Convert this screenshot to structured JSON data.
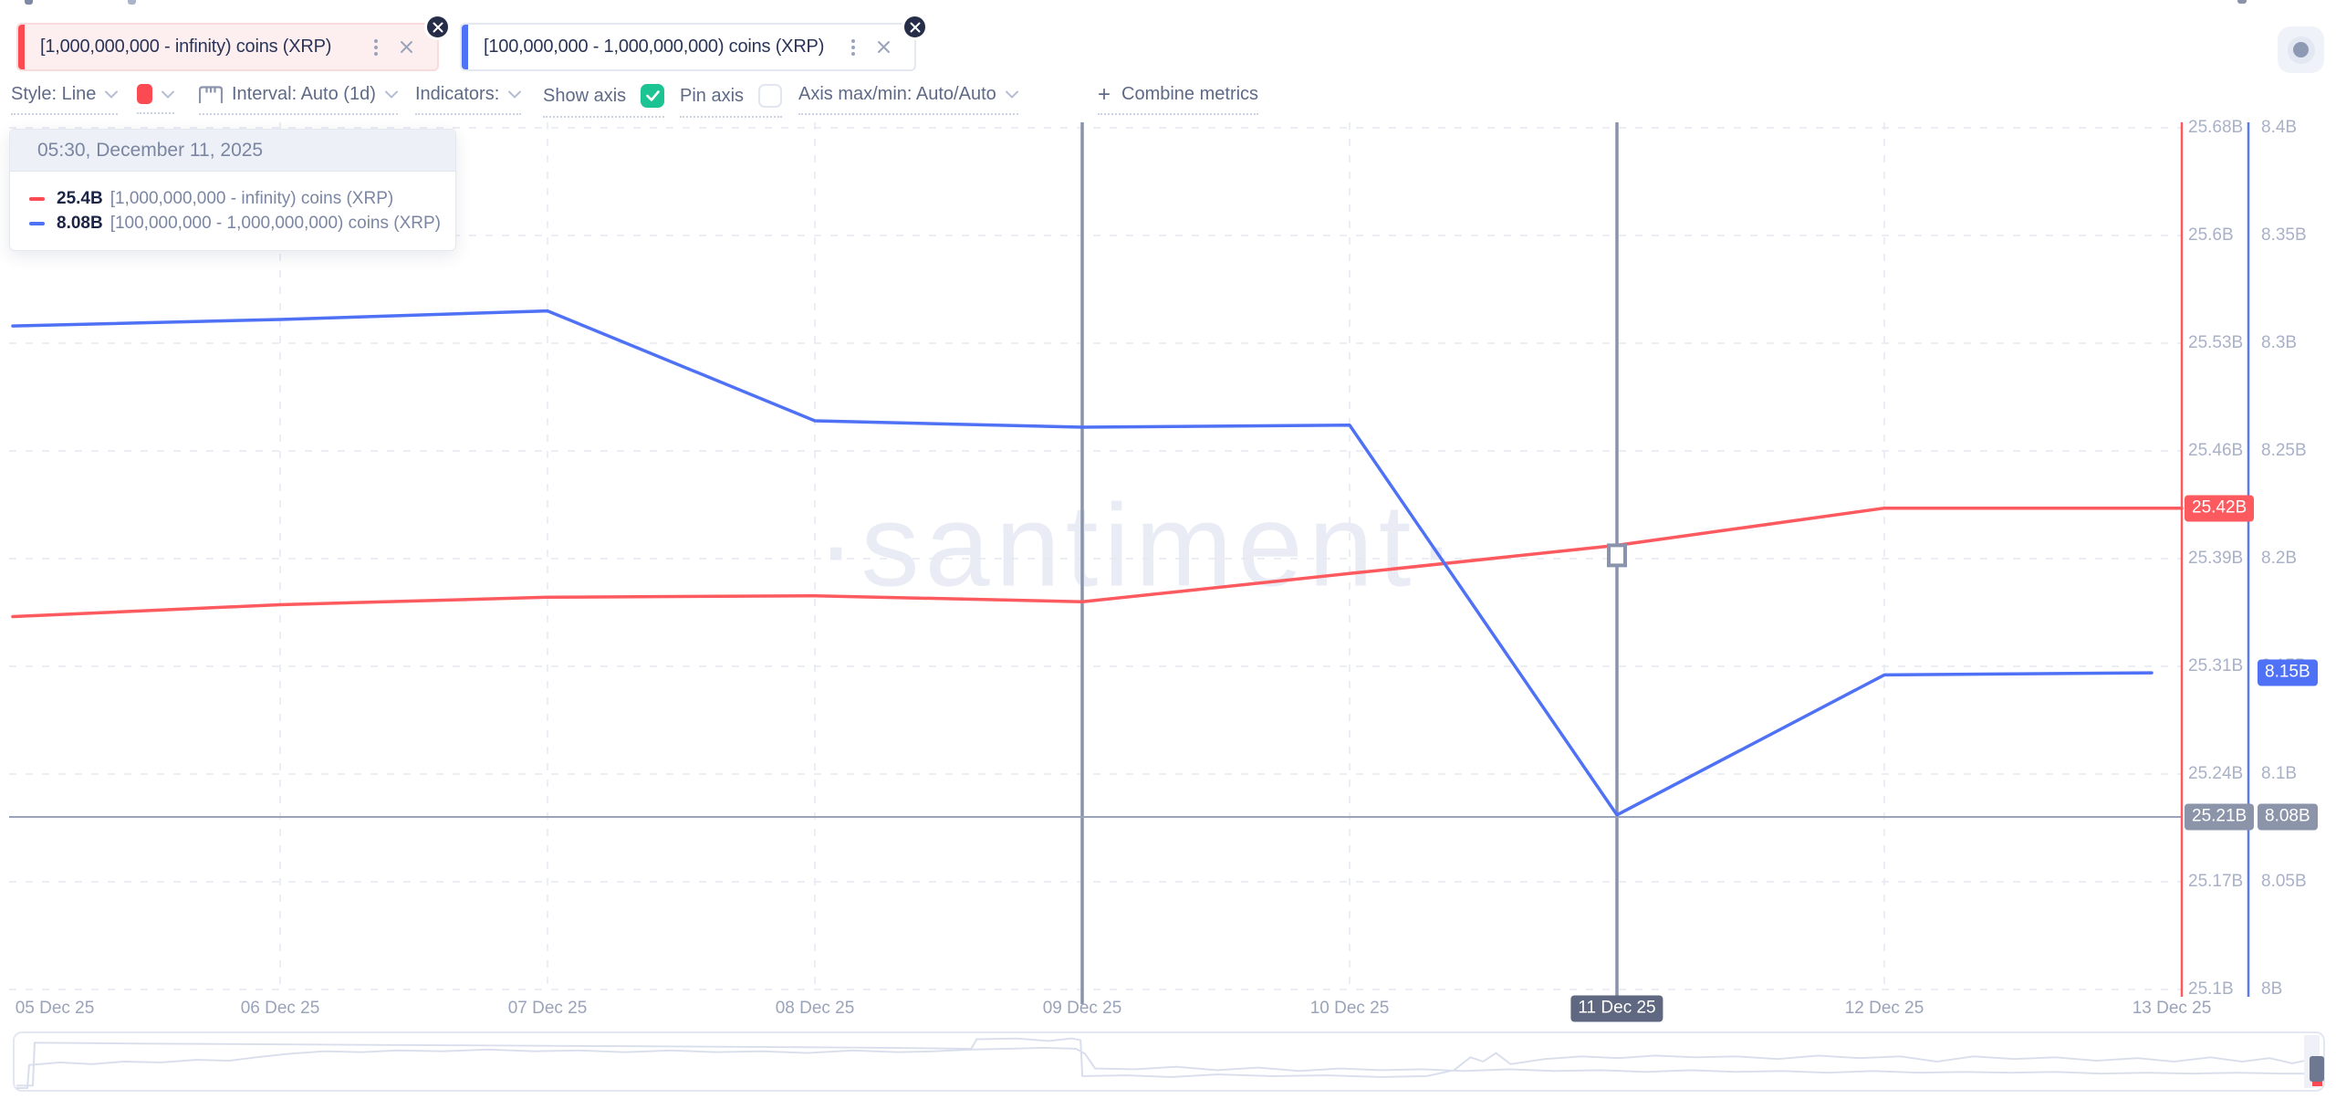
{
  "page": {
    "watermark": "·santiment·"
  },
  "tabs": [
    {
      "label": "[1,000,000,000 - infinity) coins (XRP)",
      "accent": "#fb4a52",
      "bg": "#fdeff0",
      "border": "#f8dbdc"
    },
    {
      "label": "[100,000,000 - 1,000,000,000) coins (XRP)",
      "accent": "#4f71f5",
      "bg": "#ffffff",
      "border": "#e4e8f2"
    }
  ],
  "toolbar": {
    "style": {
      "label": "Style: Line"
    },
    "color_swatch": "#fb4a52",
    "interval": {
      "label": "Interval: Auto (1d)"
    },
    "indicators": {
      "label": "Indicators:"
    },
    "show_axis": {
      "label": "Show axis",
      "checked": true,
      "check_color": "#1dc493"
    },
    "pin_axis": {
      "label": "Pin axis",
      "checked": false
    },
    "axis_maxmin": {
      "label": "Axis max/min: Auto/Auto"
    },
    "combine": {
      "plus": "+",
      "label": "Combine metrics"
    }
  },
  "tooltip": {
    "header": "05:30, December 11, 2025",
    "rows": [
      {
        "value": "25.4B",
        "label": "[1,000,000,000 - infinity) coins (XRP)",
        "color": "#fb4a52"
      },
      {
        "value": "8.08B",
        "label": "[100,000,000 - 1,000,000,000) coins (XRP)",
        "color": "#4f71f5"
      }
    ]
  },
  "chart_data": {
    "type": "line",
    "title": "",
    "x": [
      "05 Dec 25",
      "06 Dec 25",
      "07 Dec 25",
      "08 Dec 25",
      "09 Dec 25",
      "10 Dec 25",
      "11 Dec 25",
      "12 Dec 25",
      "13 Dec 25"
    ],
    "series": [
      {
        "name": "[1,000,000,000 - infinity) coins (XRP)",
        "color": "#fc5a5e",
        "axis": "left",
        "values": [
          25.351,
          25.359,
          25.364,
          25.365,
          25.361,
          25.38,
          25.399,
          25.424,
          25.424
        ],
        "extend_to_axis": true
      },
      {
        "name": "[100,000,000 - 1,000,000,000) coins (XRP)",
        "color": "#4f71f5",
        "axis": "right",
        "values": [
          8.308,
          8.311,
          8.315,
          8.264,
          8.261,
          8.262,
          8.081,
          8.146,
          8.147
        ],
        "extend_to_axis": false
      }
    ],
    "left_axis": {
      "range": [
        25.1,
        25.68
      ],
      "color": "#fc5a5e",
      "ticks": [
        "25.68B",
        "25.6B",
        "25.53B",
        "25.46B",
        "25.39B",
        "25.31B",
        "25.24B",
        "25.17B",
        "25.1B"
      ]
    },
    "right_axis": {
      "range": [
        8.0,
        8.4
      ],
      "color": "#5b79f0",
      "ticks": [
        "8.4B",
        "8.35B",
        "8.3B",
        "8.25B",
        "8.2B",
        "8.15B",
        "8.1B",
        "8.05B",
        "8B"
      ]
    },
    "grid": true,
    "legend_position": "tooltip",
    "crosshair": {
      "date": "11 Dec 25",
      "time": "05:30, December 11, 2025",
      "left_axis_value": "25.21B",
      "right_axis_value": "8.08B",
      "marker_day_index": 4,
      "crosshair_day_index": 6
    }
  },
  "badges": {
    "left_last": {
      "text": "25.42B",
      "bg": "#fc5a5e"
    },
    "right_last": {
      "text": "8.15B",
      "bg": "#4f71f5"
    },
    "left_crosshair": {
      "text": "25.21B",
      "bg": "#8c94a9"
    },
    "right_crosshair": {
      "text": "8.08B",
      "bg": "#8c94a9"
    },
    "date": {
      "text": "11 Dec 25",
      "bg": "#5f6880"
    }
  },
  "navigator": {
    "series": [
      [
        [
          2,
          61
        ],
        [
          20,
          61
        ],
        [
          22,
          11
        ],
        [
          140,
          12
        ],
        [
          300,
          13
        ],
        [
          480,
          14
        ],
        [
          660,
          15
        ],
        [
          830,
          16
        ],
        [
          960,
          17
        ],
        [
          1050,
          18
        ],
        [
          1056,
          7
        ],
        [
          1100,
          6
        ],
        [
          1135,
          9
        ],
        [
          1160,
          6
        ],
        [
          1170,
          8
        ],
        [
          1172,
          50
        ],
        [
          1220,
          49
        ],
        [
          1270,
          51
        ],
        [
          1320,
          48
        ],
        [
          1380,
          50
        ],
        [
          1440,
          49
        ],
        [
          1500,
          51
        ],
        [
          1550,
          50
        ],
        [
          1580,
          43
        ],
        [
          1598,
          28
        ],
        [
          1612,
          33
        ],
        [
          1626,
          23
        ],
        [
          1642,
          36
        ],
        [
          1680,
          30
        ],
        [
          1720,
          27
        ],
        [
          1760,
          29
        ],
        [
          1800,
          26
        ],
        [
          1845,
          28
        ],
        [
          1890,
          27
        ],
        [
          1935,
          30
        ],
        [
          1980,
          26
        ],
        [
          2025,
          29
        ],
        [
          2070,
          27
        ],
        [
          2110,
          33
        ],
        [
          2150,
          27
        ],
        [
          2195,
          30
        ],
        [
          2240,
          28
        ],
        [
          2285,
          32
        ],
        [
          2330,
          29
        ],
        [
          2370,
          33
        ],
        [
          2410,
          28
        ],
        [
          2445,
          33
        ],
        [
          2475,
          29
        ],
        [
          2500,
          35
        ],
        [
          2518,
          31
        ],
        [
          2532,
          37
        ]
      ],
      [
        [
          2,
          64
        ],
        [
          14,
          64
        ],
        [
          16,
          37
        ],
        [
          50,
          34
        ],
        [
          85,
          36
        ],
        [
          120,
          33
        ],
        [
          160,
          34
        ],
        [
          200,
          31
        ],
        [
          235,
          32
        ],
        [
          265,
          28
        ],
        [
          300,
          24
        ],
        [
          340,
          21
        ],
        [
          380,
          22
        ],
        [
          420,
          20
        ],
        [
          470,
          21
        ],
        [
          520,
          19
        ],
        [
          570,
          21
        ],
        [
          620,
          20
        ],
        [
          670,
          22
        ],
        [
          720,
          20
        ],
        [
          770,
          22
        ],
        [
          820,
          21
        ],
        [
          870,
          23
        ],
        [
          920,
          20
        ],
        [
          970,
          22
        ],
        [
          1010,
          21
        ],
        [
          1050,
          19
        ],
        [
          1090,
          18
        ],
        [
          1130,
          17
        ],
        [
          1165,
          18
        ],
        [
          1175,
          24
        ],
        [
          1186,
          41
        ],
        [
          1230,
          42
        ],
        [
          1275,
          39
        ],
        [
          1320,
          43
        ],
        [
          1365,
          40
        ],
        [
          1410,
          44
        ],
        [
          1455,
          41
        ],
        [
          1500,
          43
        ],
        [
          1545,
          42
        ],
        [
          1590,
          44
        ],
        [
          1640,
          42
        ],
        [
          1690,
          44
        ],
        [
          1740,
          43
        ],
        [
          1790,
          45
        ],
        [
          1840,
          43
        ],
        [
          1890,
          45
        ],
        [
          1940,
          44
        ],
        [
          1990,
          46
        ],
        [
          2040,
          44
        ],
        [
          2090,
          46
        ],
        [
          2140,
          45
        ],
        [
          2190,
          46
        ],
        [
          2240,
          45
        ],
        [
          2290,
          47
        ],
        [
          2340,
          46
        ],
        [
          2390,
          47
        ],
        [
          2440,
          46
        ],
        [
          2490,
          47
        ],
        [
          2532,
          47
        ]
      ]
    ]
  }
}
